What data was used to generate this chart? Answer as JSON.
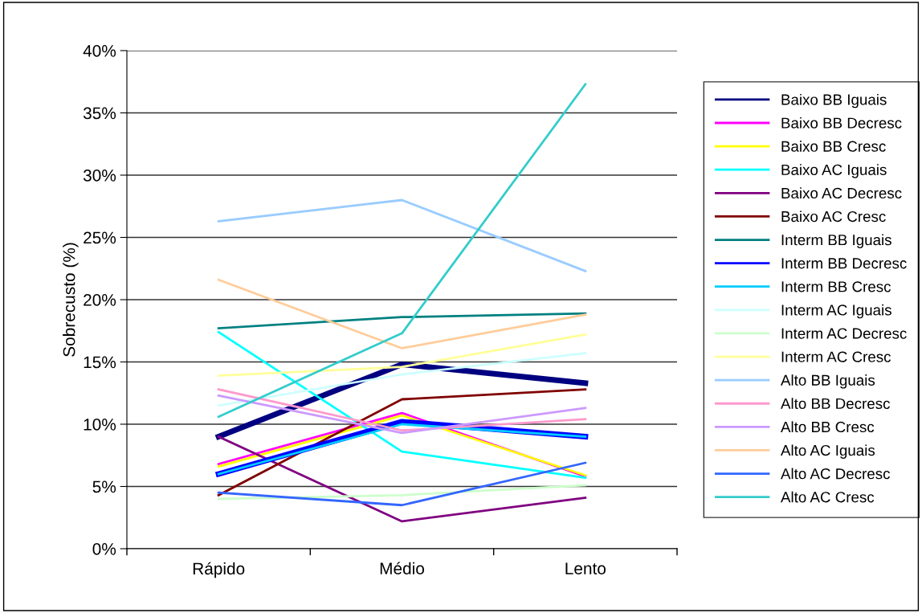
{
  "chart_data": {
    "type": "line",
    "ylabel": "Sobrecusto (%)",
    "categories": [
      "Rápido",
      "Médio",
      "Lento"
    ],
    "ylim": [
      0,
      40
    ],
    "yticks": [
      {
        "value": 0,
        "label": "0%"
      },
      {
        "value": 5,
        "label": "5%"
      },
      {
        "value": 10,
        "label": "10%"
      },
      {
        "value": 15,
        "label": "15%"
      },
      {
        "value": 20,
        "label": "20%"
      },
      {
        "value": 25,
        "label": "25%"
      },
      {
        "value": 30,
        "label": "30%"
      },
      {
        "value": 35,
        "label": "35%"
      },
      {
        "value": 40,
        "label": "40%"
      }
    ],
    "grid": "y",
    "legend": "right",
    "marker": "none",
    "series": [
      {
        "name": "Baixo BB Iguais",
        "color": "#000080",
        "values": [
          9.0,
          14.8,
          13.3
        ]
      },
      {
        "name": "Baixo BB Decresc",
        "color": "#ff00ff",
        "values": [
          6.8,
          10.9,
          5.8
        ]
      },
      {
        "name": "Baixo BB Cresc",
        "color": "#ffff00",
        "values": [
          6.6,
          10.7,
          5.9
        ]
      },
      {
        "name": "Baixo AC Iguais",
        "color": "#00ffff",
        "values": [
          17.4,
          7.8,
          5.7
        ]
      },
      {
        "name": "Baixo AC Decresc",
        "color": "#800080",
        "values": [
          9.0,
          2.2,
          4.1
        ]
      },
      {
        "name": "Baixo AC Cresc",
        "color": "#800000",
        "values": [
          4.3,
          12.0,
          12.8
        ]
      },
      {
        "name": "Interm BB Iguais",
        "color": "#008080",
        "values": [
          17.7,
          18.6,
          18.9
        ]
      },
      {
        "name": "Interm BB Decresc",
        "color": "#0000ff",
        "values": [
          6.0,
          10.2,
          9.0
        ]
      },
      {
        "name": "Interm BB Cresc",
        "color": "#00ccff",
        "values": [
          6.0,
          10.0,
          9.0
        ]
      },
      {
        "name": "Interm AC Iguais",
        "color": "#ccffff",
        "values": [
          11.5,
          14.0,
          15.7
        ]
      },
      {
        "name": "Interm AC Decresc",
        "color": "#ccffcc",
        "values": [
          4.0,
          4.3,
          5.1
        ]
      },
      {
        "name": "Interm AC Cresc",
        "color": "#ffff99",
        "values": [
          13.9,
          14.6,
          17.2
        ]
      },
      {
        "name": "Alto BB Iguais",
        "color": "#99ccff",
        "values": [
          26.3,
          28.0,
          22.3
        ]
      },
      {
        "name": "Alto BB Decresc",
        "color": "#ff99cc",
        "values": [
          12.8,
          9.5,
          10.4
        ]
      },
      {
        "name": "Alto BB Cresc",
        "color": "#cc99ff",
        "values": [
          12.3,
          9.3,
          11.3
        ]
      },
      {
        "name": "Alto AC Iguais",
        "color": "#ffcc99",
        "values": [
          21.6,
          16.1,
          18.8
        ]
      },
      {
        "name": "Alto AC Decresc",
        "color": "#3366ff",
        "values": [
          4.5,
          3.5,
          6.9
        ]
      },
      {
        "name": "Alto AC Cresc",
        "color": "#33cccc",
        "values": [
          10.6,
          17.3,
          37.3
        ]
      }
    ]
  }
}
